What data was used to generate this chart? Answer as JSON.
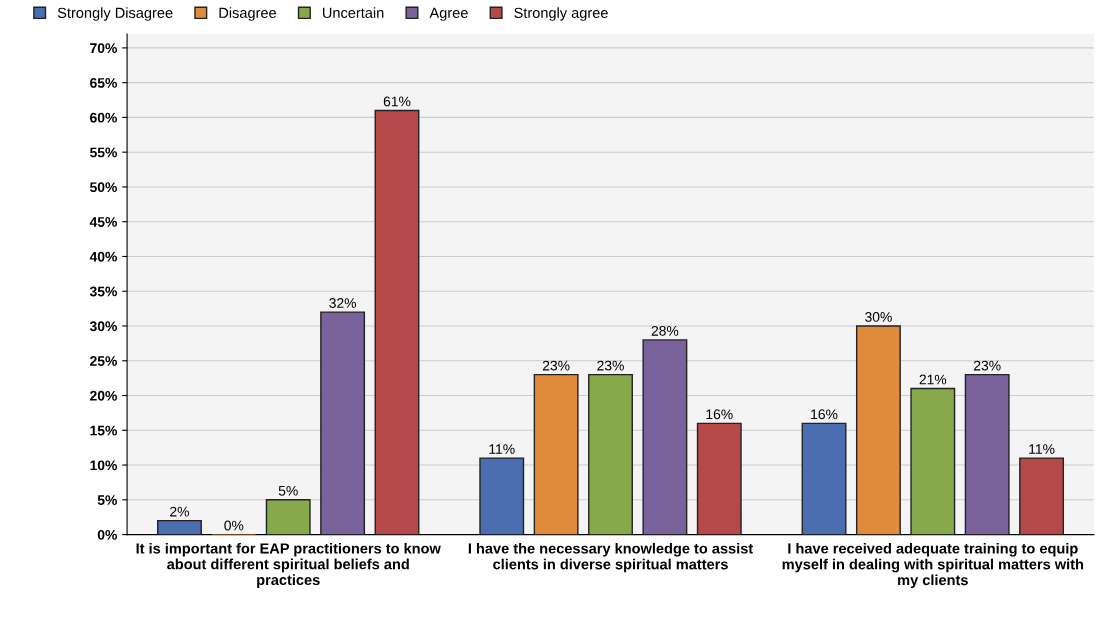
{
  "chart_data": {
    "type": "bar",
    "categories": [
      "It is important for EAP practitioners to know about different spiritual beliefs and practices",
      "I have the necessary knowledge to assist clients in diverse spiritual matters",
      "I have received adequate training to equip myself in dealing with spiritual matters with my clients"
    ],
    "series": [
      {
        "name": "Strongly Disagree",
        "color": "#4a6eb0",
        "values": [
          2,
          11,
          16
        ],
        "value_labels": [
          "2%",
          "11%",
          "16%"
        ]
      },
      {
        "name": "Disagree",
        "color": "#e08a3c",
        "values": [
          0,
          23,
          30
        ],
        "value_labels": [
          "0%",
          "23%",
          "30%"
        ]
      },
      {
        "name": "Uncertain",
        "color": "#86a94b",
        "values": [
          5,
          23,
          21
        ],
        "value_labels": [
          "5%",
          "23%",
          "21%"
        ]
      },
      {
        "name": "Agree",
        "color": "#7a629c",
        "values": [
          32,
          28,
          23
        ],
        "value_labels": [
          "32%",
          "28%",
          "23%"
        ]
      },
      {
        "name": "Strongly agree",
        "color": "#b5494a",
        "values": [
          61,
          16,
          11
        ],
        "value_labels": [
          "61%",
          "16%",
          "11%"
        ]
      }
    ],
    "ylim": [
      0,
      72
    ],
    "yticks": [
      {
        "value": 0,
        "label": "0%"
      },
      {
        "value": 5,
        "label": "5%"
      },
      {
        "value": 10,
        "label": "10%"
      },
      {
        "value": 15,
        "label": "15%"
      },
      {
        "value": 20,
        "label": "20%"
      },
      {
        "value": 25,
        "label": "25%"
      },
      {
        "value": 30,
        "label": "30%"
      },
      {
        "value": 35,
        "label": "35%"
      },
      {
        "value": 40,
        "label": "40%"
      },
      {
        "value": 45,
        "label": "45%"
      },
      {
        "value": 50,
        "label": "50%"
      },
      {
        "value": 55,
        "label": "55%"
      },
      {
        "value": 60,
        "label": "60%"
      },
      {
        "value": 65,
        "label": "65%"
      },
      {
        "value": 70,
        "label": "70%"
      }
    ],
    "grid": "y",
    "legend": "top left"
  }
}
